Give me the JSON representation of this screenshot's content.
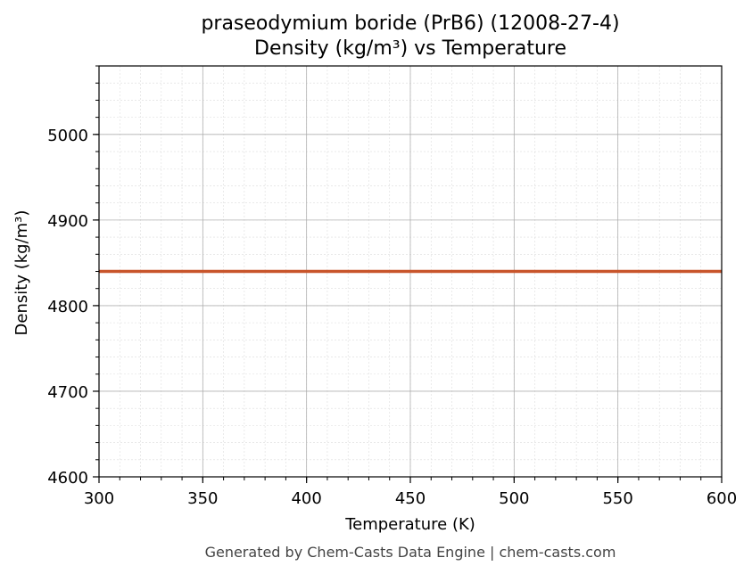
{
  "chart_data": {
    "type": "line",
    "title": "praseodymium boride (PrB6) (12008-27-4)",
    "subtitle": "Density (kg/m³) vs Temperature",
    "xlabel": "Temperature (K)",
    "ylabel": "Density (kg/m³)",
    "xlim": [
      300,
      600
    ],
    "ylim": [
      4600,
      5080
    ],
    "xticks": [
      300,
      350,
      400,
      450,
      500,
      550,
      600
    ],
    "yticks": [
      4600,
      4700,
      4800,
      4900,
      5000
    ],
    "grid": true,
    "series": [
      {
        "color": "#c8552b",
        "x": [
          300,
          350,
          400,
          450,
          500,
          550,
          600
        ],
        "y": [
          4840,
          4840,
          4840,
          4840,
          4840,
          4840,
          4840
        ]
      }
    ]
  },
  "footer": "Generated by Chem-Casts Data Engine | chem-casts.com"
}
